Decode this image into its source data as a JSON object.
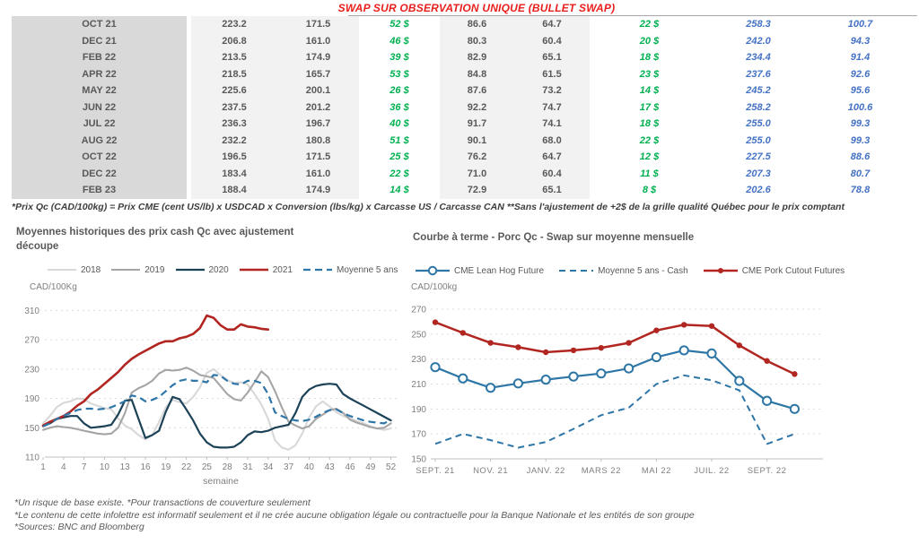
{
  "title": "SWAP SUR OBSERVATION UNIQUE (BULLET SWAP)",
  "colors": {
    "title_red": "#e8201d",
    "table_green": "#00b050",
    "table_blue": "#4472c4",
    "table_text_gray": "#595959",
    "month_col_bg": "#d9d9d9",
    "value_col_bg": "#f2f2f2"
  },
  "table": {
    "footnote": "*Prix Qc (CAD/100kg) = Prix CME (cent US/lb) x USDCAD x Conversion (lbs/kg) x Carcasse US / Carcasse CAN **Sans l'ajustement de +2$ de la grille qualité Québec pour le prix comptant",
    "rows": [
      [
        "OCT 21",
        "223.2",
        "171.5",
        "52 $",
        "86.6",
        "64.7",
        "22 $",
        "258.3",
        "100.7"
      ],
      [
        "DEC 21",
        "206.8",
        "161.0",
        "46 $",
        "80.3",
        "60.4",
        "20 $",
        "242.0",
        "94.3"
      ],
      [
        "FEB 22",
        "213.5",
        "174.9",
        "39 $",
        "82.9",
        "65.1",
        "18 $",
        "234.4",
        "91.4"
      ],
      [
        "APR 22",
        "218.5",
        "165.7",
        "53 $",
        "84.8",
        "61.5",
        "23 $",
        "237.6",
        "92.6"
      ],
      [
        "MAY 22",
        "225.6",
        "200.1",
        "26 $",
        "87.6",
        "73.2",
        "14 $",
        "245.2",
        "95.6"
      ],
      [
        "JUN 22",
        "237.5",
        "201.2",
        "36 $",
        "92.2",
        "74.7",
        "17 $",
        "258.2",
        "100.6"
      ],
      [
        "JUL 22",
        "236.3",
        "196.7",
        "40 $",
        "91.7",
        "74.1",
        "18 $",
        "255.0",
        "99.3"
      ],
      [
        "AUG 22",
        "232.2",
        "180.8",
        "51 $",
        "90.1",
        "68.0",
        "22 $",
        "255.0",
        "99.3"
      ],
      [
        "OCT 22",
        "196.5",
        "171.5",
        "25 $",
        "76.2",
        "64.7",
        "12 $",
        "227.5",
        "88.6"
      ],
      [
        "DEC 22",
        "183.4",
        "161.0",
        "22 $",
        "71.0",
        "60.4",
        "11 $",
        "207.3",
        "80.7"
      ],
      [
        "FEB 23",
        "188.4",
        "174.9",
        "14 $",
        "72.9",
        "65.1",
        "8 $",
        "202.6",
        "78.8"
      ]
    ]
  },
  "chart_data": [
    {
      "id": "historical-cash-prices",
      "type": "line",
      "title": "Moyennes historiques des prix cash Qc avec ajustement découpe",
      "ylabel": "CAD/100Kg",
      "xlabel": "semaine",
      "ylim": [
        110,
        310
      ],
      "yticks": [
        110,
        150,
        190,
        230,
        270,
        310
      ],
      "xticks": [
        1,
        4,
        7,
        10,
        13,
        16,
        19,
        22,
        25,
        28,
        31,
        34,
        37,
        40,
        43,
        46,
        49,
        52
      ],
      "grid": "dashed-horizontal",
      "legend_position": "top-center",
      "series": [
        {
          "name": "2018",
          "color": "#d8d8d8",
          "width": 2.1,
          "dash": null,
          "marker": null,
          "values": [
            156,
            166,
            178,
            184,
            186,
            190,
            189,
            183,
            180,
            177,
            175,
            163,
            153,
            148,
            140,
            134,
            140,
            158,
            178,
            188,
            185,
            183,
            192,
            205,
            225,
            230,
            222,
            215,
            211,
            212,
            209,
            196,
            182,
            162,
            133,
            123,
            120,
            126,
            142,
            164,
            179,
            186,
            179,
            171,
            166,
            163,
            159,
            156,
            152,
            149,
            147,
            149
          ]
        },
        {
          "name": "2019",
          "color": "#a5a5a5",
          "width": 2.1,
          "dash": null,
          "marker": null,
          "values": [
            147,
            150,
            152,
            151,
            150,
            148,
            146,
            144,
            142,
            141,
            142,
            150,
            170,
            198,
            204,
            208,
            214,
            224,
            229,
            228,
            229,
            232,
            228,
            222,
            220,
            218,
            207,
            196,
            189,
            187,
            198,
            212,
            227,
            219,
            200,
            178,
            158,
            153,
            149,
            152,
            162,
            168,
            174,
            176,
            170,
            161,
            157,
            154,
            151,
            149,
            150,
            156
          ]
        },
        {
          "name": "2020",
          "color": "#1c4257",
          "width": 2.2,
          "dash": null,
          "marker": null,
          "values": [
            152,
            156,
            162,
            164,
            166,
            166,
            156,
            150,
            151,
            152,
            154,
            168,
            187,
            188,
            162,
            136,
            140,
            146,
            172,
            192,
            189,
            175,
            160,
            142,
            130,
            124,
            123,
            123,
            124,
            130,
            140,
            145,
            144,
            146,
            150,
            152,
            154,
            170,
            192,
            202,
            207,
            209,
            210,
            209,
            196,
            190,
            185,
            180,
            175,
            170,
            165,
            160
          ]
        },
        {
          "name": "2021",
          "color": "#b22622",
          "width": 2.6,
          "dash": null,
          "marker": null,
          "values": [
            153,
            158,
            162,
            166,
            172,
            180,
            186,
            196,
            202,
            210,
            218,
            226,
            236,
            244,
            250,
            255,
            260,
            265,
            268,
            268,
            272,
            274,
            278,
            286,
            303,
            300,
            290,
            284,
            284,
            291,
            288,
            287,
            285,
            284
          ]
        },
        {
          "name": "Moyenne 5 ans",
          "color": "#2e75a8",
          "width": 2.2,
          "dash": "8 5",
          "marker": null,
          "values": [
            152,
            156,
            162,
            166,
            170,
            174,
            176,
            176,
            175,
            176,
            178,
            182,
            186,
            194,
            192,
            186,
            188,
            192,
            200,
            208,
            214,
            216,
            214,
            214,
            212,
            222,
            221,
            214,
            210,
            209,
            214,
            214,
            211,
            196,
            171,
            166,
            162,
            160,
            159,
            161,
            165,
            170,
            174,
            175,
            170,
            166,
            163,
            160,
            158,
            157,
            156,
            161
          ]
        }
      ]
    },
    {
      "id": "forward-curve",
      "type": "line",
      "title": "Courbe à terme - Porc Qc - Swap sur moyenne mensuelle",
      "ylabel": "CAD/100kg",
      "xlabel": "",
      "ylim": [
        150,
        270
      ],
      "yticks": [
        150,
        170,
        190,
        210,
        230,
        250,
        270
      ],
      "xtick_positions": [
        0,
        2,
        4,
        6,
        8,
        10,
        12
      ],
      "xtick_labels": [
        "SEPT. 21",
        "NOV. 21",
        "JANV. 22",
        "MARS 22",
        "MAI 22",
        "JUIL. 22",
        "SEPT. 22"
      ],
      "grid": "dashed-horizontal",
      "legend_position": "top-left",
      "series": [
        {
          "name": "CME Lean Hog Future",
          "color": "#2d76a5",
          "width": 2.2,
          "dash": null,
          "marker": "open",
          "values": [
            223.5,
            214.5,
            207,
            210.5,
            213.5,
            216,
            218.5,
            222.5,
            231.5,
            237,
            234.5,
            212.5,
            196.5,
            190
          ]
        },
        {
          "name": "Moyenne 5 ans - Cash",
          "color": "#2e75a8",
          "width": 2,
          "dash": "7 5",
          "marker": null,
          "values": [
            162,
            170,
            165,
            159,
            163.5,
            174,
            185,
            191,
            210,
            217,
            213,
            205,
            162,
            170
          ]
        },
        {
          "name": "CME Pork Cutout Futures",
          "color": "#b22622",
          "width": 2.5,
          "dash": null,
          "marker": "dot",
          "values": [
            259.5,
            251,
            243,
            239.5,
            235.5,
            237,
            239,
            243,
            253,
            257.5,
            256.5,
            241,
            228.5,
            218
          ]
        }
      ]
    }
  ],
  "footnotes": [
    "*Un risque de base existe. *Pour transactions de couverture seulement",
    "*Le contenu de cette infolettre est informatif seulement et il ne crée aucune obligation légale ou contractuelle pour la Banque Nationale et les entités de son groupe",
    "*Sources: BNC and Bloomberg"
  ]
}
